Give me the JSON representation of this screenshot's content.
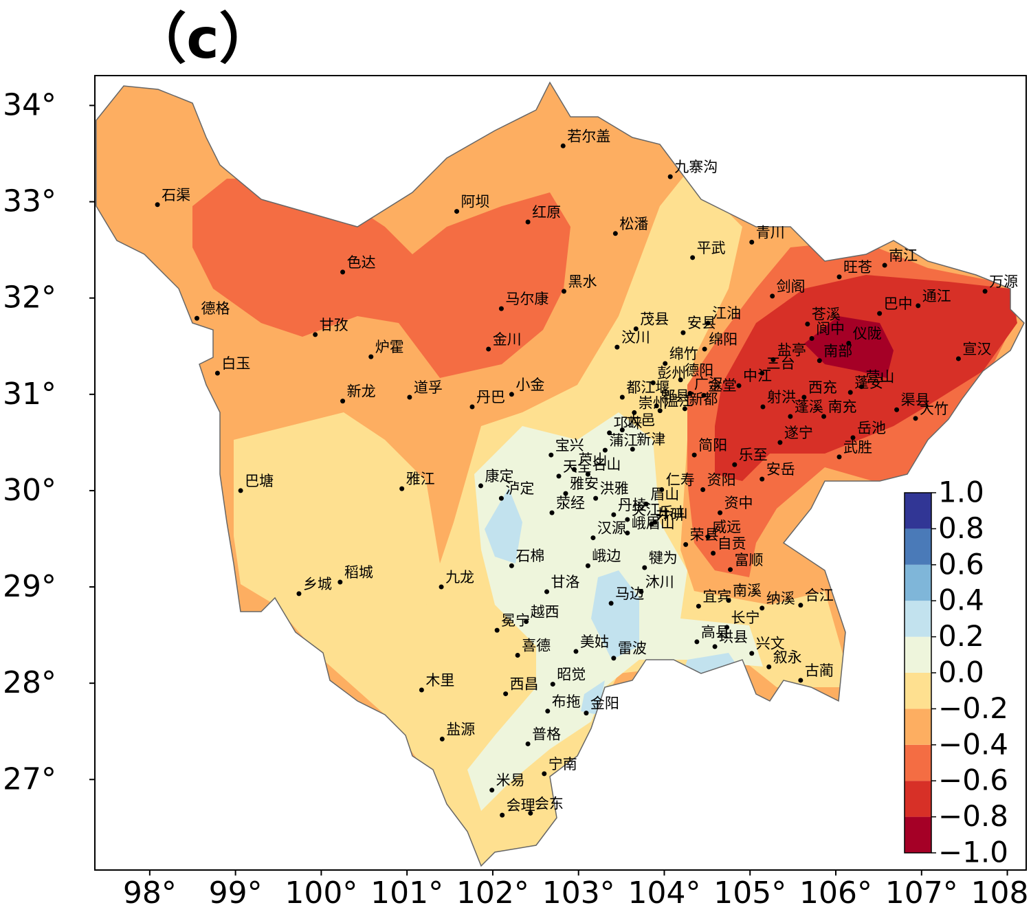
{
  "chart_data": {
    "type": "map",
    "title": "（c）",
    "xlim": [
      97.36,
      108.22
    ],
    "ylim": [
      26.06,
      34.31
    ],
    "xticks": [
      {
        "value": 98,
        "label": "98°"
      },
      {
        "value": 99,
        "label": "99°"
      },
      {
        "value": 100,
        "label": "100°"
      },
      {
        "value": 101,
        "label": "101°"
      },
      {
        "value": 102,
        "label": "102°"
      },
      {
        "value": 103,
        "label": "103°"
      },
      {
        "value": 104,
        "label": "104°"
      },
      {
        "value": 105,
        "label": "105°"
      },
      {
        "value": 106,
        "label": "106°"
      },
      {
        "value": 107,
        "label": "107°"
      },
      {
        "value": 108,
        "label": "108°"
      }
    ],
    "yticks": [
      {
        "value": 27,
        "label": "27°"
      },
      {
        "value": 28,
        "label": "28°"
      },
      {
        "value": 29,
        "label": "29°"
      },
      {
        "value": 30,
        "label": "30°"
      },
      {
        "value": 31,
        "label": "31°"
      },
      {
        "value": 32,
        "label": "32°"
      },
      {
        "value": 33,
        "label": "33°"
      },
      {
        "value": 34,
        "label": "34°"
      }
    ],
    "stations": {
      "names": [
        "若尔盖",
        "九寨沟",
        "石渠",
        "阿坝",
        "红原",
        "松潘",
        "青川",
        "平武",
        "色达",
        "南江",
        "旺苍",
        "万源",
        "黑水",
        "剑阁",
        "德格",
        "马尔康",
        "通江",
        "巴中",
        "江油",
        "安县",
        "茂县",
        "苍溪",
        "甘孜",
        "阆中",
        "仪陇",
        "绵阳",
        "金川",
        "汶川",
        "炉霍",
        "南部",
        "宣汉",
        "绵竹",
        "白玉",
        "盐亭",
        "三台",
        "德阳",
        "中江",
        "广汉",
        "西充",
        "营山",
        "蓬安",
        "射洪",
        "蓬溪",
        "南充",
        "渠县",
        "大竹",
        "金堂",
        "新都",
        "彭州",
        "都江堰",
        "郫县",
        "温江",
        "崇州",
        "大邑",
        "邛崃",
        "新津",
        "蒲江",
        "丹巴",
        "小金",
        "新龙",
        "道孚",
        "遂宁",
        "岳池",
        "武胜",
        "简阳",
        "乐至",
        "安岳",
        "宝兴",
        "芦山",
        "天全",
        "名山",
        "雅安",
        "洪雅",
        "荥经",
        "康定",
        "泸定",
        "巴塘",
        "雅江",
        "仁寿",
        "资阳",
        "资中",
        "井研",
        "夹江",
        "丹棱",
        "眉山",
        "峨眉山",
        "乐山",
        "威远",
        "荣县",
        "自贡",
        "汉源",
        "石棉",
        "峨边",
        "犍为",
        "富顺",
        "沐川",
        "甘洛",
        "九龙",
        "稻城",
        "乡城",
        "马边",
        "宜宾",
        "南溪",
        "纳溪",
        "合江",
        "冕宁",
        "越西",
        "长宁",
        "高县",
        "珙县",
        "兴文",
        "叙永",
        "喜德",
        "美姑",
        "雷波",
        "古蔺",
        "木里",
        "西昌",
        "昭觉",
        "布拖",
        "金阳",
        "盐源",
        "普格",
        "宁南",
        "米易",
        "会理",
        "会东"
      ],
      "lon": [
        102.82,
        104.07,
        98.09,
        101.58,
        102.41,
        103.43,
        105.02,
        104.33,
        100.25,
        106.57,
        106.04,
        107.74,
        102.83,
        105.26,
        98.55,
        102.1,
        106.96,
        106.51,
        104.51,
        104.22,
        103.67,
        105.67,
        99.93,
        105.72,
        106.15,
        104.47,
        101.95,
        103.45,
        100.58,
        105.81,
        107.43,
        104.01,
        98.79,
        105.27,
        105.14,
        104.19,
        104.87,
        104.3,
        105.63,
        106.3,
        106.17,
        105.15,
        105.47,
        105.86,
        106.71,
        106.93,
        104.46,
        104.24,
        103.87,
        103.51,
        103.91,
        103.95,
        103.65,
        103.51,
        103.36,
        103.63,
        103.31,
        101.76,
        102.22,
        100.25,
        101.03,
        105.35,
        106.2,
        106.04,
        104.35,
        104.82,
        105.14,
        102.68,
        102.95,
        102.77,
        103.11,
        102.85,
        103.2,
        102.69,
        101.86,
        102.1,
        99.06,
        100.94,
        103.97,
        104.45,
        104.65,
        103.85,
        103.57,
        103.41,
        103.79,
        103.57,
        103.89,
        104.51,
        104.25,
        104.57,
        103.17,
        102.22,
        103.11,
        103.77,
        104.77,
        103.73,
        102.63,
        101.4,
        100.22,
        99.74,
        103.38,
        104.4,
        104.75,
        105.14,
        105.59,
        102.05,
        102.39,
        104.73,
        104.38,
        104.59,
        105.02,
        105.22,
        102.29,
        102.97,
        103.41,
        105.59,
        101.17,
        102.15,
        102.7,
        102.64,
        103.09,
        101.41,
        102.41,
        102.6,
        101.99,
        102.11,
        102.44
      ],
      "lat": [
        33.58,
        33.26,
        32.97,
        32.9,
        32.79,
        32.67,
        32.58,
        32.42,
        32.27,
        32.34,
        32.22,
        32.07,
        32.07,
        32.02,
        31.79,
        31.89,
        31.92,
        31.84,
        31.74,
        31.64,
        31.68,
        31.73,
        31.62,
        31.58,
        31.53,
        31.47,
        31.47,
        31.49,
        31.39,
        31.35,
        31.37,
        31.32,
        31.22,
        31.36,
        31.22,
        31.15,
        31.09,
        31.01,
        30.97,
        31.08,
        31.02,
        30.87,
        30.77,
        30.77,
        30.84,
        30.75,
        30.99,
        30.85,
        31.12,
        30.97,
        30.88,
        30.83,
        30.81,
        30.63,
        30.6,
        30.43,
        30.42,
        30.87,
        31.0,
        30.93,
        30.97,
        30.5,
        30.55,
        30.35,
        30.37,
        30.27,
        30.12,
        30.37,
        30.22,
        30.15,
        30.17,
        29.97,
        29.92,
        29.77,
        30.05,
        29.92,
        30.0,
        30.02,
        30.01,
        30.01,
        29.77,
        29.65,
        29.7,
        29.75,
        29.86,
        29.56,
        29.67,
        29.52,
        29.44,
        29.35,
        29.51,
        29.22,
        29.22,
        29.2,
        29.18,
        28.95,
        28.95,
        29.0,
        29.05,
        28.93,
        28.83,
        28.8,
        28.86,
        28.78,
        28.81,
        28.55,
        28.64,
        28.58,
        28.43,
        28.38,
        28.31,
        28.17,
        28.29,
        28.33,
        28.26,
        28.03,
        27.93,
        27.89,
        27.99,
        27.71,
        27.69,
        27.42,
        27.37,
        27.06,
        26.89,
        26.63,
        26.65
      ]
    },
    "colorbar": {
      "clim": [
        -1,
        1
      ],
      "ticks": [
        {
          "value": -1,
          "label": "−1.0"
        },
        {
          "value": -0.8,
          "label": "−0.8"
        },
        {
          "value": -0.6,
          "label": "−0.6"
        },
        {
          "value": -0.4,
          "label": "−0.4"
        },
        {
          "value": -0.2,
          "label": "−0.2"
        },
        {
          "value": 0,
          "label": "0.0"
        },
        0.2,
        0.4,
        0.6,
        0.8,
        {
          "value": 1,
          "label": "1.0"
        }
      ],
      "colors": [
        "#a50026",
        "#d73027",
        "#f46d43",
        "#fdae61",
        "#fee090",
        "#eef5dc",
        "#c2e2ee",
        "#7fb6d9",
        "#4a7ab8",
        "#313695"
      ]
    }
  }
}
